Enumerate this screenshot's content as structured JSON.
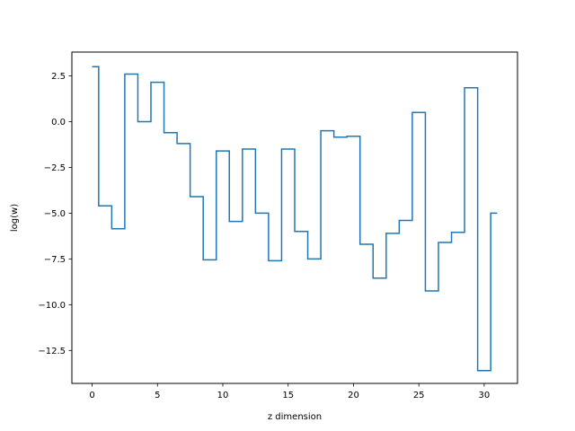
{
  "chart_data": {
    "type": "line",
    "drawstyle": "steps-mid",
    "xlabel": "z dimension",
    "ylabel": "log(w)",
    "xlim": [
      -1.55,
      32.55
    ],
    "ylim": [
      -14.3,
      3.8
    ],
    "xticks": [
      0,
      5,
      10,
      15,
      20,
      25,
      30
    ],
    "yticks": [
      2.5,
      0.0,
      -2.5,
      -5.0,
      -7.5,
      -10.0,
      -12.5
    ],
    "xtick_labels": [
      "0",
      "5",
      "10",
      "15",
      "20",
      "25",
      "30"
    ],
    "ytick_labels": [
      "2.5",
      "0.0",
      "−2.5",
      "−5.0",
      "−7.5",
      "−10.0",
      "−12.5"
    ],
    "grid": false,
    "series": [
      {
        "color": "#1f77b4",
        "x": [
          0,
          1,
          2,
          3,
          4,
          5,
          6,
          7,
          8,
          9,
          10,
          11,
          12,
          13,
          14,
          15,
          16,
          17,
          18,
          19,
          20,
          21,
          22,
          23,
          24,
          25,
          26,
          27,
          28,
          29,
          30,
          31
        ],
        "y": [
          3.0,
          -4.6,
          -5.85,
          2.6,
          0.0,
          2.15,
          -0.6,
          -1.2,
          -4.1,
          -7.55,
          -1.6,
          -5.45,
          -1.5,
          -5.0,
          -7.6,
          -1.5,
          -6.0,
          -7.5,
          -0.5,
          -0.85,
          -0.8,
          -6.7,
          -8.55,
          -6.1,
          -5.4,
          0.5,
          -9.25,
          -6.6,
          -6.05,
          1.85,
          -13.6,
          -5.0
        ]
      }
    ]
  }
}
